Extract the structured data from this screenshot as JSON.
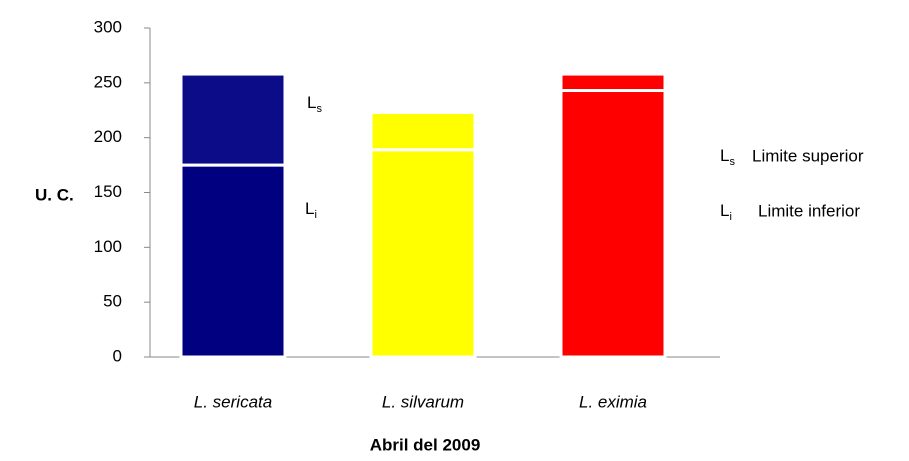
{
  "chart_data": {
    "type": "stacked_bar",
    "categories": [
      "L. sericata",
      "L. silvarum",
      "L. eximia"
    ],
    "series": [
      {
        "colors": [
          "#000080",
          "#ffff00",
          "#ff0000"
        ],
        "values": [
          175,
          189,
          243
        ]
      },
      {
        "colors": [
          "#0c0c88",
          "#ffff00",
          "#ff0000"
        ],
        "values": [
          83,
          34,
          15
        ]
      }
    ],
    "ylim": [
      0,
      300
    ],
    "yticks": [
      0,
      50,
      100,
      150,
      200,
      250,
      300
    ],
    "ylabel": "U. C.",
    "xlabel": "Abril del 2009",
    "annotations": [
      {
        "symbol": "L",
        "sub": "s"
      },
      {
        "symbol": "L",
        "sub": "i"
      }
    ],
    "legend": [
      {
        "symbol": "L",
        "sub": "s",
        "label": "Limite superior"
      },
      {
        "symbol": "L",
        "sub": "i",
        "label": "Limite inferior"
      }
    ]
  }
}
